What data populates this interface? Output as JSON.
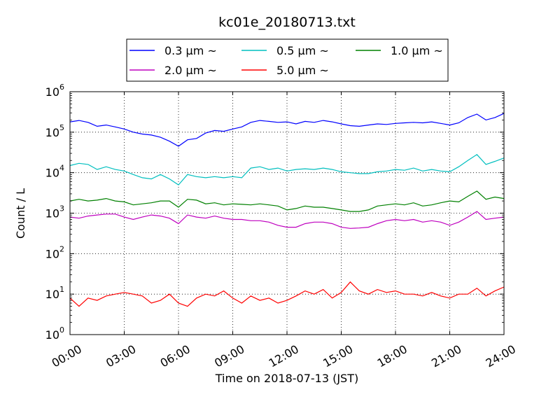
{
  "chart_data": {
    "type": "line",
    "title": "kc01e_20180713.txt",
    "xlabel": "Time on 2018-07-13 (JST)",
    "ylabel": "Count / L",
    "yscale": "log",
    "ylim": [
      1,
      1000000
    ],
    "xlim": [
      "00:00",
      "24:00"
    ],
    "x_tick_labels": [
      "00:00",
      "03:00",
      "06:00",
      "09:00",
      "12:00",
      "15:00",
      "18:00",
      "21:00",
      "24:00"
    ],
    "y_tick_labels": [
      {
        "base": "10",
        "exp": "0"
      },
      {
        "base": "10",
        "exp": "1"
      },
      {
        "base": "10",
        "exp": "2"
      },
      {
        "base": "10",
        "exp": "3"
      },
      {
        "base": "10",
        "exp": "4"
      },
      {
        "base": "10",
        "exp": "5"
      },
      {
        "base": "10",
        "exp": "6"
      }
    ],
    "grid": true,
    "legend_position": "top",
    "x": [
      "00:00",
      "00:30",
      "01:00",
      "01:30",
      "02:00",
      "02:30",
      "03:00",
      "03:30",
      "04:00",
      "04:30",
      "05:00",
      "05:30",
      "06:00",
      "06:30",
      "07:00",
      "07:30",
      "08:00",
      "08:30",
      "09:00",
      "09:30",
      "10:00",
      "10:30",
      "11:00",
      "11:30",
      "12:00",
      "12:30",
      "13:00",
      "13:30",
      "14:00",
      "14:30",
      "15:00",
      "15:30",
      "16:00",
      "16:30",
      "17:00",
      "17:30",
      "18:00",
      "18:30",
      "19:00",
      "19:30",
      "20:00",
      "20:30",
      "21:00",
      "21:30",
      "22:00",
      "22:30",
      "23:00",
      "23:30",
      "24:00"
    ],
    "series": [
      {
        "name": "0.3 μm ~",
        "color": "#0000ff",
        "values": [
          180000,
          195000,
          175000,
          140000,
          150000,
          135000,
          120000,
          100000,
          90000,
          85000,
          75000,
          60000,
          45000,
          65000,
          70000,
          95000,
          110000,
          105000,
          120000,
          135000,
          175000,
          195000,
          185000,
          175000,
          180000,
          160000,
          185000,
          175000,
          195000,
          180000,
          160000,
          145000,
          140000,
          150000,
          160000,
          155000,
          165000,
          170000,
          175000,
          170000,
          180000,
          165000,
          150000,
          170000,
          230000,
          280000,
          200000,
          230000,
          290000
        ]
      },
      {
        "name": "0.5 μm ~",
        "color": "#00bfbf",
        "values": [
          15000,
          17000,
          16000,
          12000,
          14000,
          12000,
          11000,
          9000,
          7500,
          7000,
          9000,
          7000,
          5000,
          9000,
          8000,
          7500,
          8000,
          7500,
          8000,
          7500,
          13000,
          14000,
          12000,
          13000,
          11000,
          12000,
          12500,
          12000,
          13000,
          12000,
          10500,
          10000,
          9500,
          9500,
          10500,
          11000,
          12000,
          11500,
          13000,
          11000,
          12000,
          11000,
          10500,
          14000,
          20000,
          28000,
          16000,
          19000,
          23000
        ]
      },
      {
        "name": "1.0 μm ~",
        "color": "#008000",
        "values": [
          2000,
          2200,
          2000,
          2100,
          2300,
          2000,
          1900,
          1600,
          1700,
          1800,
          2000,
          2000,
          1400,
          2200,
          2100,
          1700,
          1800,
          1600,
          1700,
          1650,
          1600,
          1700,
          1600,
          1500,
          1200,
          1300,
          1500,
          1400,
          1400,
          1300,
          1200,
          1100,
          1100,
          1200,
          1500,
          1600,
          1700,
          1600,
          1800,
          1500,
          1600,
          1800,
          2000,
          1900,
          2600,
          3500,
          2200,
          2500,
          2300
        ]
      },
      {
        "name": "2.0 μm ~",
        "color": "#bf00bf",
        "values": [
          800,
          750,
          850,
          900,
          950,
          950,
          800,
          700,
          800,
          900,
          850,
          750,
          550,
          900,
          800,
          750,
          850,
          750,
          700,
          700,
          650,
          650,
          600,
          500,
          450,
          450,
          550,
          600,
          600,
          550,
          450,
          420,
          430,
          450,
          550,
          650,
          700,
          650,
          700,
          600,
          650,
          600,
          500,
          600,
          800,
          1100,
          700,
          750,
          800
        ]
      },
      {
        "name": "5.0 μm ~",
        "color": "#ff0000",
        "values": [
          8,
          5,
          8,
          7,
          9,
          10,
          11,
          10,
          9,
          6,
          7,
          10,
          6,
          5,
          8,
          10,
          9,
          12,
          8,
          6,
          9,
          7,
          8,
          6,
          7,
          9,
          12,
          10,
          13,
          8,
          11,
          20,
          12,
          10,
          13,
          11,
          12,
          10,
          10,
          9,
          11,
          9,
          8,
          10,
          10,
          14,
          9,
          12,
          15
        ]
      }
    ]
  }
}
